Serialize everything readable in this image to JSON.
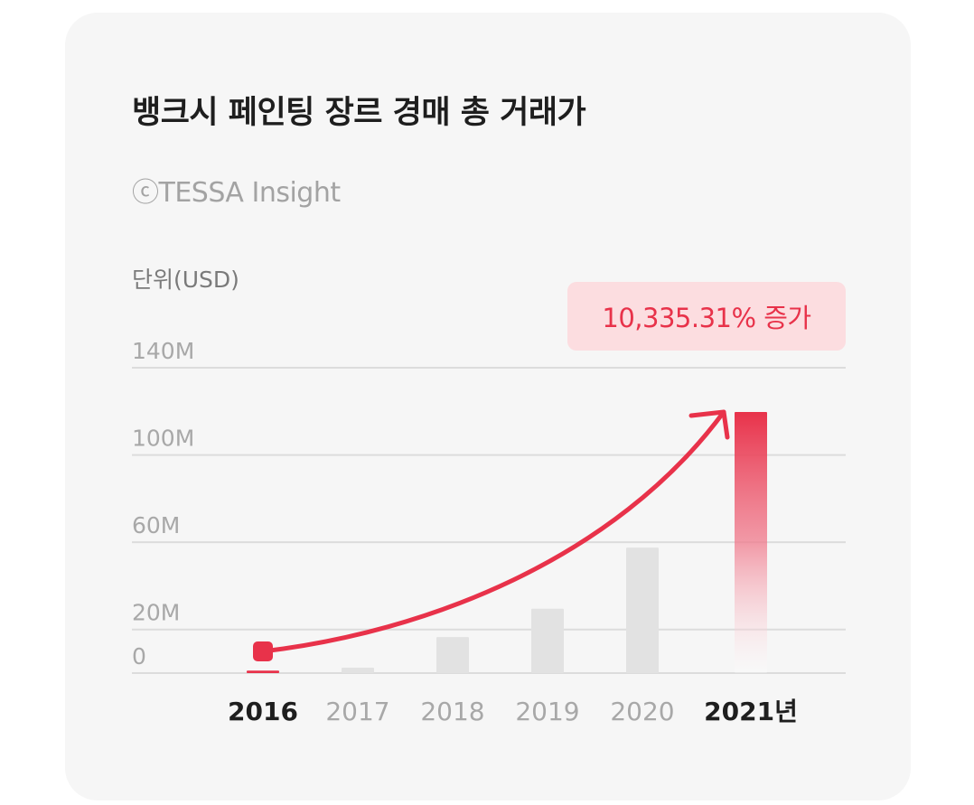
{
  "card": {
    "title": "뱅크시 페인팅 장르 경매 총 거래가",
    "source": "ⓒTESSA Insight",
    "unit_label": "단위(USD)",
    "badge": "10,335.31% 증가"
  },
  "colors": {
    "accent": "#e8324a",
    "bar_gray": "#e2e2e2",
    "grid": "#dcdcdc",
    "badge_bg": "#fcdde0",
    "card_bg": "#f6f6f6"
  },
  "chart_data": {
    "type": "bar",
    "title": "뱅크시 페인팅 장르 경매 총 거래가",
    "ylabel": "단위(USD)",
    "categories": [
      "2016",
      "2017",
      "2018",
      "2019",
      "2020",
      "2021년"
    ],
    "values": [
      1.15,
      2.5,
      16.5,
      29.5,
      57.5,
      119.7
    ],
    "highlight": [
      true,
      false,
      false,
      false,
      false,
      true
    ],
    "ylim": [
      0,
      140
    ],
    "yticks": [
      {
        "value": 0,
        "label": "0"
      },
      {
        "value": 20,
        "label": "20M"
      },
      {
        "value": 60,
        "label": "60M"
      },
      {
        "value": 100,
        "label": "100M"
      },
      {
        "value": 140,
        "label": "140M"
      }
    ],
    "annotation": "10,335.31% 증가",
    "grid": true
  }
}
